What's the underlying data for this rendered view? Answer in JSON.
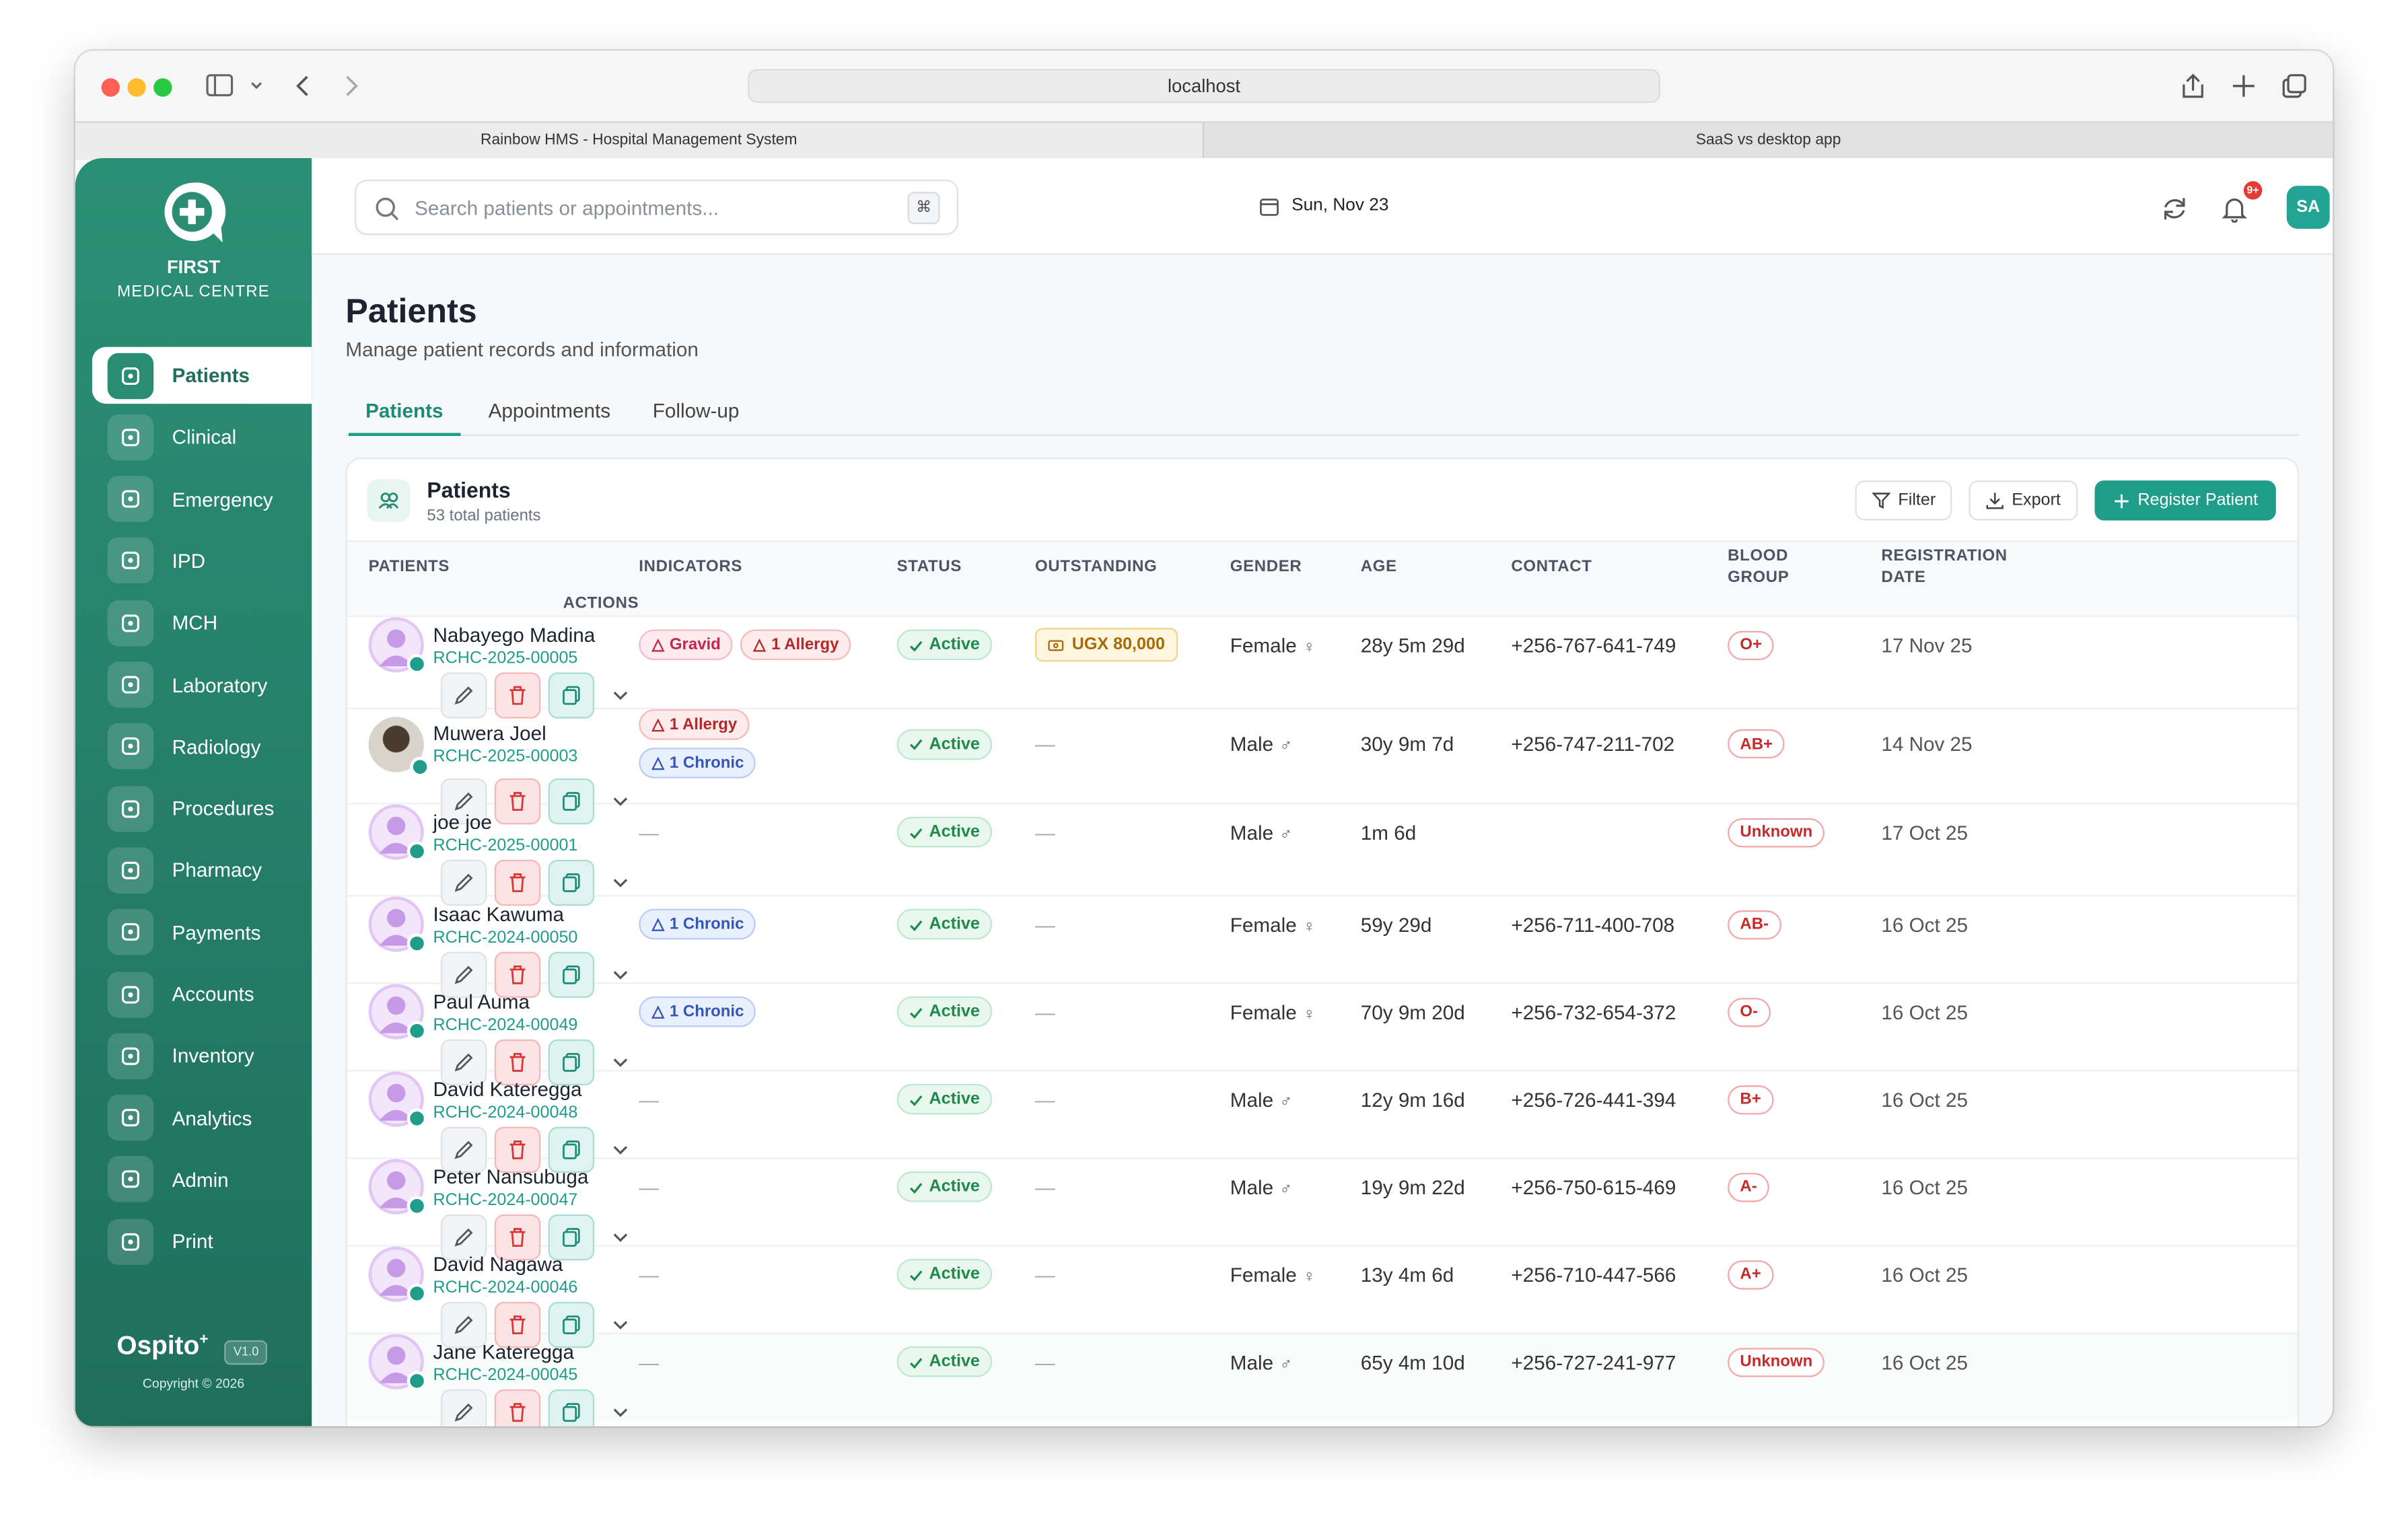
{
  "browser": {
    "url": "localhost",
    "tabs": [
      "Rainbow HMS - Hospital Management System",
      "SaaS vs desktop app"
    ]
  },
  "sidebar": {
    "brand": [
      "FIRST",
      "MEDICAL CENTRE"
    ],
    "active": 0,
    "items": [
      "Patients",
      "Clinical",
      "Emergency",
      "IPD",
      "MCH",
      "Laboratory",
      "Radiology",
      "Procedures",
      "Pharmacy",
      "Payments",
      "Accounts",
      "Inventory",
      "Analytics",
      "Admin",
      "Print"
    ],
    "product": "Ospito",
    "product_mark": "+",
    "version": "V1.0",
    "copyright": "Copyright © 2026"
  },
  "topbar": {
    "search": "Search patients or appointments...",
    "shortcut": "⌘",
    "date": "Sun, Nov 23",
    "notifications": "9+",
    "user": "SA"
  },
  "page": {
    "title": "Patients",
    "subtitle": "Manage patient records and information",
    "tabs": [
      "Patients",
      "Appointments",
      "Follow-up"
    ],
    "active_tab": 0
  },
  "card": {
    "title": "Patients",
    "subtitle": "53 total patients",
    "buttons": [
      "Filter",
      "Export",
      "Register Patient"
    ]
  },
  "table": {
    "headers": [
      "PATIENTS",
      "INDICATORS",
      "STATUS",
      "OUTSTANDING",
      "GENDER",
      "AGE",
      "CONTACT",
      "BLOOD GROUP",
      "REGISTRATION DATE",
      "ACTIONS"
    ],
    "rows": [
      {
        "name": "Nabayego Madina",
        "id": "RCHC-2025-00005",
        "indicators": [
          {
            "tone": "pink",
            "label": "Gravid"
          },
          {
            "tone": "red",
            "label": "1 Allergy"
          }
        ],
        "status": "Active",
        "outstanding": "UGX 80,000",
        "gender": "Female",
        "gender_symbol": "♀",
        "age": "28y 5m 29d",
        "contact": "+256-767-641-749",
        "blood": "O+",
        "date": "17 Nov 25"
      },
      {
        "name": "Muwera Joel",
        "id": "RCHC-2025-00003",
        "photo": true,
        "indicators": [
          {
            "tone": "red",
            "label": "1 Allergy"
          },
          {
            "tone": "blue",
            "label": "1 Chronic"
          }
        ],
        "status": "Active",
        "outstanding": "—",
        "gender": "Male",
        "gender_symbol": "♂",
        "age": "30y 9m 7d",
        "contact": "+256-747-211-702",
        "blood": "AB+",
        "date": "14 Nov 25"
      },
      {
        "name": "joe joe",
        "id": "RCHC-2025-00001",
        "indicators": "—",
        "status": "Active",
        "outstanding": "—",
        "gender": "Male",
        "gender_symbol": "♂",
        "age": "1m 6d",
        "contact": null,
        "blood": "Unknown",
        "date": "17 Oct 25"
      },
      {
        "name": "Isaac Kawuma",
        "id": "RCHC-2024-00050",
        "indicators": [
          {
            "tone": "blue",
            "label": "1 Chronic"
          }
        ],
        "status": "Active",
        "outstanding": "—",
        "gender": "Female",
        "gender_symbol": "♀",
        "age": "59y 29d",
        "contact": "+256-711-400-708",
        "blood": "AB-",
        "date": "16 Oct 25"
      },
      {
        "name": "Paul Auma",
        "id": "RCHC-2024-00049",
        "indicators": [
          {
            "tone": "blue",
            "label": "1 Chronic"
          }
        ],
        "status": "Active",
        "outstanding": "—",
        "gender": "Female",
        "gender_symbol": "♀",
        "age": "70y 9m 20d",
        "contact": "+256-732-654-372",
        "blood": "O-",
        "date": "16 Oct 25"
      },
      {
        "name": "David Kateregga",
        "id": "RCHC-2024-00048",
        "indicators": "—",
        "status": "Active",
        "outstanding": "—",
        "gender": "Male",
        "gender_symbol": "♂",
        "age": "12y 9m 16d",
        "contact": "+256-726-441-394",
        "blood": "B+",
        "date": "16 Oct 25"
      },
      {
        "name": "Peter Nansubuga",
        "id": "RCHC-2024-00047",
        "indicators": "—",
        "status": "Active",
        "outstanding": "—",
        "gender": "Male",
        "gender_symbol": "♂",
        "age": "19y 9m 22d",
        "contact": "+256-750-615-469",
        "blood": "A-",
        "date": "16 Oct 25"
      },
      {
        "name": "David Nagawa",
        "id": "RCHC-2024-00046",
        "indicators": "—",
        "status": "Active",
        "outstanding": "—",
        "gender": "Female",
        "gender_symbol": "♀",
        "age": "13y 4m 6d",
        "contact": "+256-710-447-566",
        "blood": "A+",
        "date": "16 Oct 25"
      },
      {
        "name": "Jane Kateregga",
        "id": "RCHC-2024-00045",
        "indicators": "—",
        "status": "Active",
        "outstanding": "—",
        "gender": "Male",
        "gender_symbol": "♂",
        "age": "65y 4m 10d",
        "contact": "+256-727-241-977",
        "blood": "Unknown",
        "date": "16 Oct 25"
      }
    ]
  }
}
